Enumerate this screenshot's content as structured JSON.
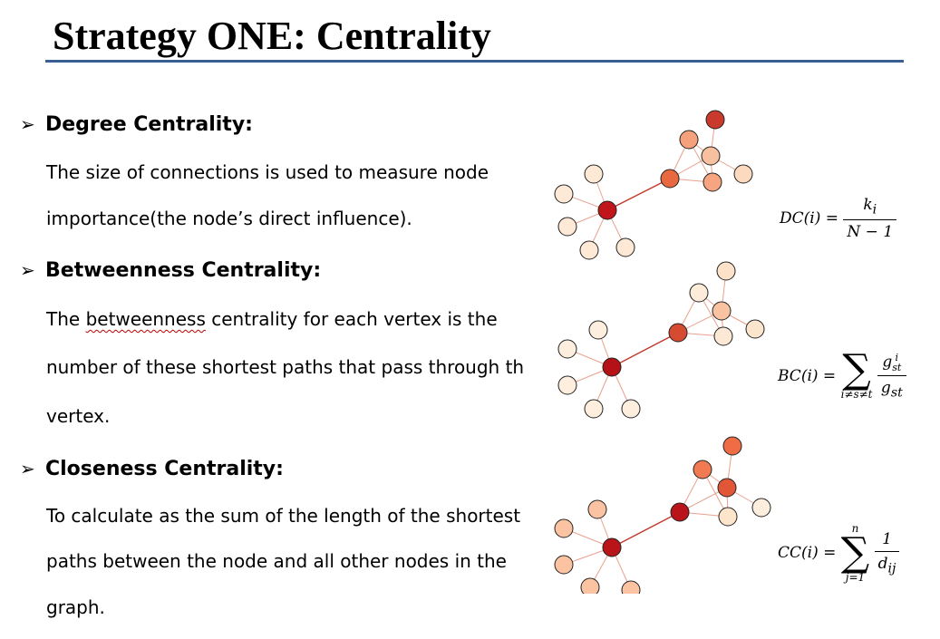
{
  "title": "Strategy ONE: Centrality",
  "colors": {
    "rule": "#3a5f94",
    "squiggle": "#c00000",
    "edge": "#c0392b"
  },
  "sections": [
    {
      "heading": "Degree Centrality:",
      "lines": [
        "The size of connections is used to measure node",
        "importance(the node’s direct influence)."
      ]
    },
    {
      "heading": "Betweenness Centrality:",
      "lines": [
        [
          "The ",
          "betweenness",
          " centrality for each vertex is the"
        ],
        "number of these shortest paths that pass through th",
        "vertex."
      ]
    },
    {
      "heading": "Closeness Centrality:",
      "lines": [
        "To calculate as the sum of the length of the  shortest",
        "paths  between the node and all other nodes in the",
        "graph."
      ]
    }
  ],
  "formulas": {
    "dc": {
      "lhs": "DC(i) =",
      "num": "k",
      "num_sub": "i",
      "den": "N − 1"
    },
    "bc": {
      "lhs": "BC(i) =",
      "sigma": "∑",
      "lower": "i≠s≠t",
      "num": "g",
      "num_sup": "i",
      "num_sub": "st",
      "den": "g",
      "den_sub": "st"
    },
    "cc": {
      "lhs": "CC(i) =",
      "sigma": "∑",
      "upper": "n",
      "lower": "j=1",
      "num": "1",
      "den": "d",
      "den_sub": "ij"
    }
  },
  "graphs": [
    {
      "name": "degree",
      "node_colors": [
        "#c0161b",
        "#fde9d6",
        "#fde9d6",
        "#fde9d6",
        "#fde9d6",
        "#fde9d6",
        "#e8683f",
        "#f5a17c",
        "#f7c1a0",
        "#c93a2c",
        "#f7a580",
        "#fcd9bf"
      ]
    },
    {
      "name": "betweenness",
      "node_colors": [
        "#b51218",
        "#fdeedd",
        "#fdeedd",
        "#fdeedd",
        "#fdeedd",
        "#fdeedd",
        "#d64a32",
        "#fcecd9",
        "#f9c3a1",
        "#fbe2c9",
        "#fbe9d6",
        "#fbe5cd"
      ]
    },
    {
      "name": "closeness",
      "node_colors": [
        "#b8141a",
        "#fbc3a1",
        "#fbc3a1",
        "#fbc3a1",
        "#fbc3a1",
        "#fbc3a1",
        "#b8141a",
        "#f27a52",
        "#e05637",
        "#f06c45",
        "#fde5cc",
        "#fdeede"
      ]
    }
  ]
}
